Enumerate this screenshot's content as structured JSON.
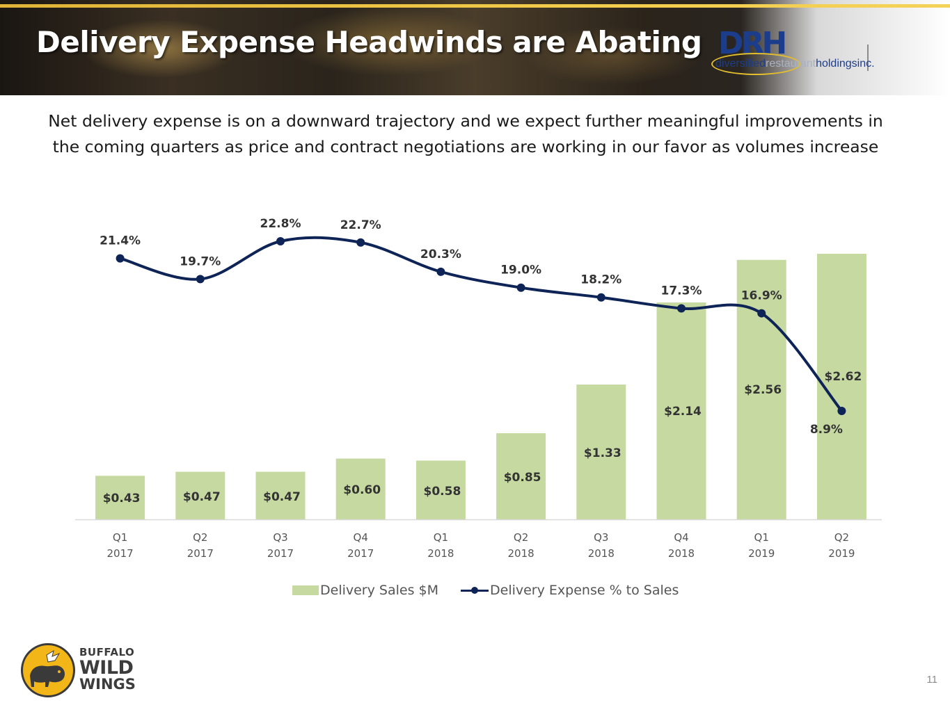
{
  "header": {
    "title": "Delivery Expense Headwinds are Abating",
    "logo": {
      "mark": "DRH",
      "word1": "diversified",
      "word2": "restaurant",
      "word3": "holdingsinc."
    }
  },
  "subtitle": {
    "line1": "Net delivery expense is on a downward trajectory and we expect further meaningful improvements in",
    "line2": "the coming quarters as price and contract negotiations are working in our favor as volumes increase"
  },
  "chart_data": {
    "type": "bar",
    "title": "",
    "categories": [
      [
        "Q1",
        "2017"
      ],
      [
        "Q2",
        "2017"
      ],
      [
        "Q3",
        "2017"
      ],
      [
        "Q4",
        "2017"
      ],
      [
        "Q1",
        "2018"
      ],
      [
        "Q2",
        "2018"
      ],
      [
        "Q3",
        "2018"
      ],
      [
        "Q4",
        "2018"
      ],
      [
        "Q1",
        "2019"
      ],
      [
        "Q2",
        "2019"
      ]
    ],
    "series": [
      {
        "name": "Delivery Sales $M",
        "type": "bar",
        "axis": "primary",
        "values": [
          0.43,
          0.47,
          0.47,
          0.6,
          0.58,
          0.85,
          1.33,
          2.14,
          2.56,
          2.62
        ],
        "labels": [
          "$0.43",
          "$0.47",
          "$0.47",
          "$0.60",
          "$0.58",
          "$0.85",
          "$1.33",
          "$2.14",
          "$2.56",
          "$2.62"
        ],
        "color": "#c6d9a0"
      },
      {
        "name": "Delivery Expense % to Sales",
        "type": "line",
        "axis": "secondary",
        "smooth": true,
        "values": [
          21.4,
          19.7,
          22.8,
          22.7,
          20.3,
          19.0,
          18.2,
          17.3,
          16.9,
          8.9
        ],
        "labels": [
          "21.4%",
          "19.7%",
          "22.8%",
          "22.7%",
          "20.3%",
          "19.0%",
          "18.2%",
          "17.3%",
          "16.9%",
          "8.9%"
        ],
        "color": "#0e2457"
      }
    ],
    "ylim_primary": [
      0,
      2.62
    ],
    "ylim_secondary": [
      8.9,
      22.8
    ],
    "legend_position": "bottom-center",
    "grid": false
  },
  "footer": {
    "brand": {
      "word1": "BUFFALO",
      "word2": "WILD",
      "word3": "WINGS"
    },
    "page_number": "11"
  }
}
